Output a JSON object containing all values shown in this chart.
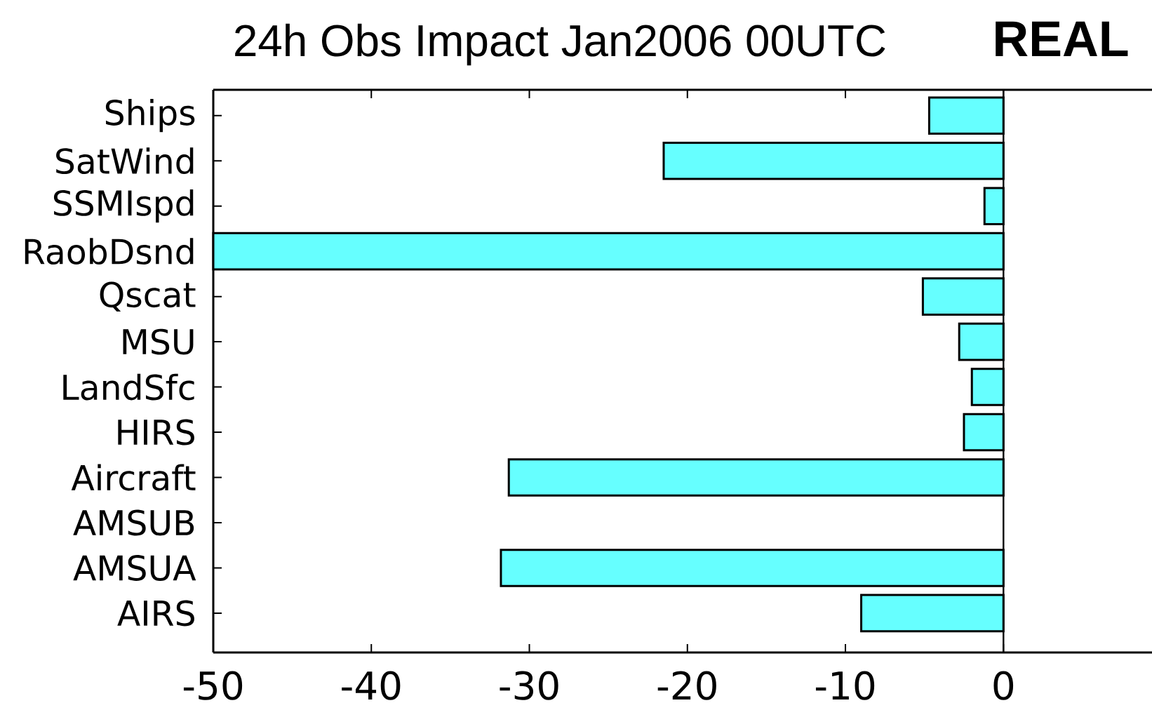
{
  "chart_data": {
    "type": "bar",
    "orientation": "horizontal",
    "title": "24h Obs Impact Jan2006 00UTC",
    "annotations": [
      "REAL"
    ],
    "categories": [
      "Ships",
      "SatWind",
      "SSMIspd",
      "RaobDsnd",
      "Qscat",
      "MSU",
      "LandSfc",
      "HIRS",
      "Aircraft",
      "AMSUB",
      "AMSUA",
      "AIRS"
    ],
    "values": [
      -4.7,
      -21.5,
      -1.2,
      -50,
      -5.1,
      -2.8,
      -2.0,
      -2.5,
      -31.3,
      null,
      -31.8,
      -9.0
    ],
    "color": "#66ffff",
    "xlim": [
      -50,
      9.4
    ],
    "xticks": [
      -50,
      -40,
      -30,
      -20,
      -10,
      0
    ],
    "ref_lines": [
      {
        "axis": "x",
        "value": 0,
        "color": "#000000"
      }
    ]
  }
}
